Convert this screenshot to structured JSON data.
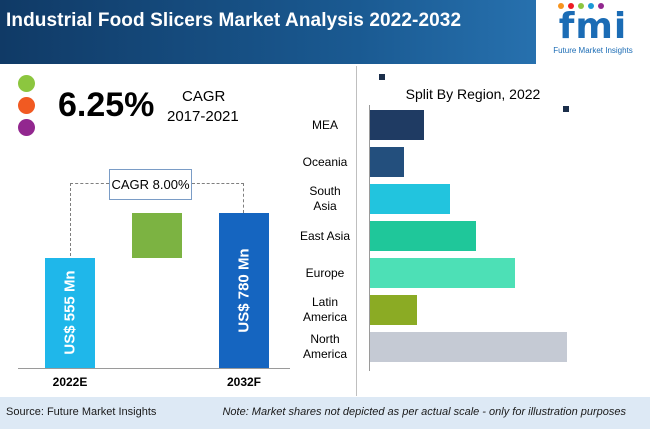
{
  "header": {
    "title": "Industrial Food Slicers Market Analysis 2022-2032"
  },
  "logo": {
    "mark": "fmi",
    "subtitle": "Future Market Insights",
    "dot_colors": [
      "#f7941d",
      "#ed1c24",
      "#8dc63f",
      "#1b9ad6",
      "#92278f"
    ]
  },
  "legend_dots": {
    "colors": [
      "#8cc63f",
      "#f15a22",
      "#92278f"
    ]
  },
  "cagr": {
    "value": "6.25%",
    "label": "CAGR",
    "period": "2017-2021",
    "forecast_label": "CAGR 8.00%"
  },
  "colors": {
    "bar_2022": "#1fb7ea",
    "bar_growth": "#7cb342",
    "bar_2032": "#1565c0",
    "header_bg": "#103a66"
  },
  "chart_data": [
    {
      "type": "bar",
      "categories": [
        "2022E",
        "2032F"
      ],
      "values": [
        555,
        780
      ],
      "data_labels": [
        "US$ 555 Mn",
        "US$ 780 Mn"
      ],
      "annotation": "CAGR 8.00%",
      "ylim": [
        0,
        780
      ]
    },
    {
      "type": "bar",
      "orientation": "horizontal",
      "title": "Split By Region, 2022",
      "categories": [
        "MEA",
        "Oceania",
        "South Asia",
        "East Asia",
        "Europe",
        "Latin America",
        "North America"
      ],
      "category_lines": [
        [
          "MEA"
        ],
        [
          "Oceania"
        ],
        [
          "South",
          "Asia"
        ],
        [
          "East Asia"
        ],
        [
          "Europe"
        ],
        [
          "Latin",
          "America"
        ],
        [
          "North",
          "America"
        ]
      ],
      "values": [
        54,
        34,
        80,
        106,
        145,
        47,
        197
      ],
      "colors": [
        "#1f3b63",
        "#234f7d",
        "#22c4de",
        "#1fc79a",
        "#4de0b6",
        "#8bab24",
        "#c5cad4"
      ],
      "value_unit": "relative share (not to scale)",
      "xlim": [
        0,
        200
      ]
    }
  ],
  "footer": {
    "source": "Source: Future Market Insights",
    "note": "Note: Market shares not depicted as per actual scale - only for illustration purposes"
  }
}
